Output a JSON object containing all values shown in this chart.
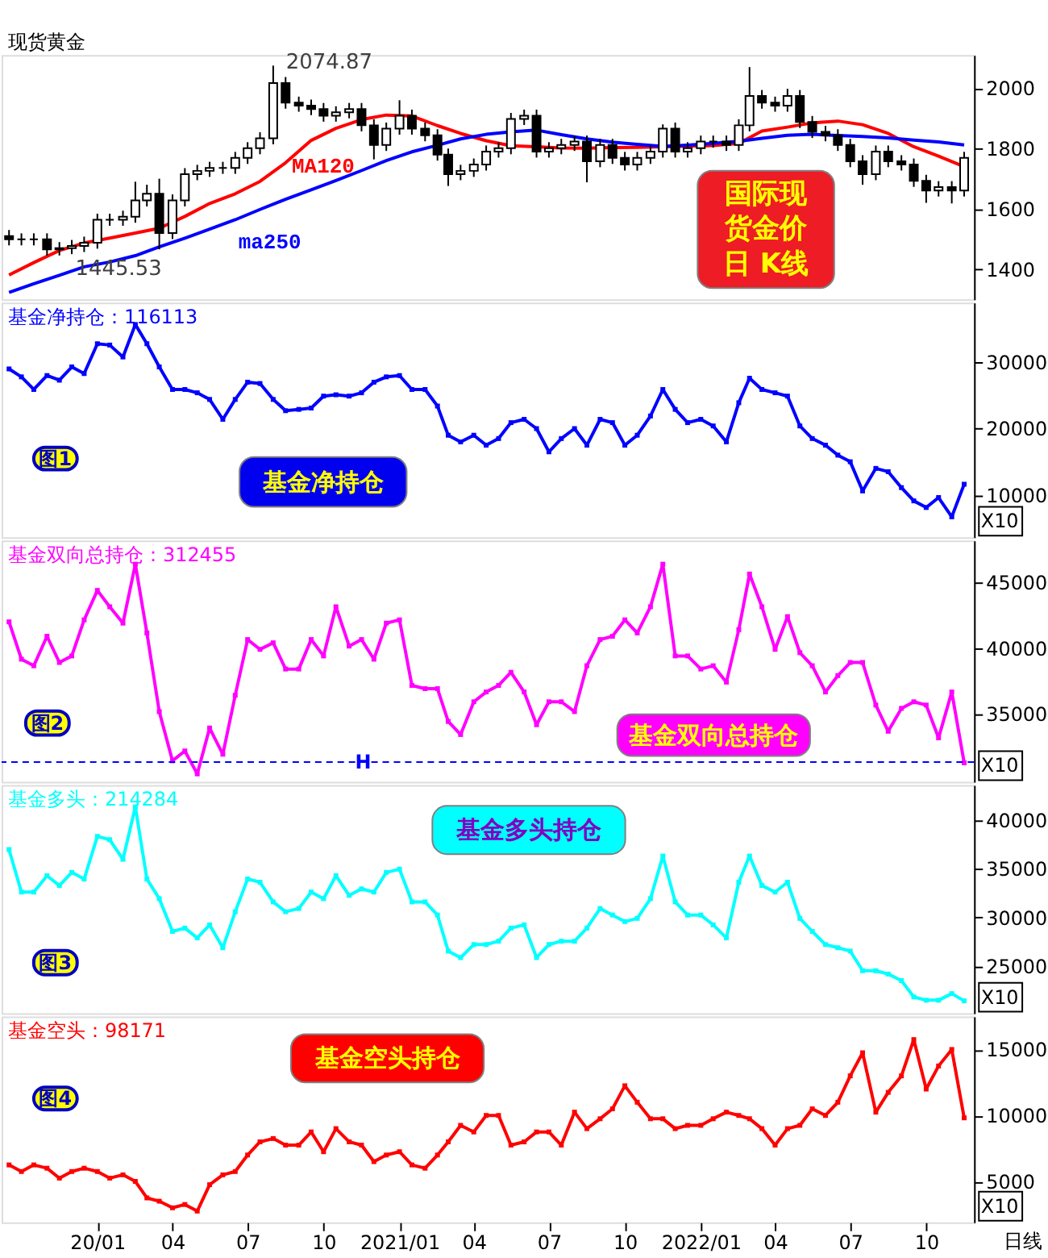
{
  "chart_data": [
    {
      "type": "candlestick",
      "title": "现货黄金",
      "xlim": [
        "2019-09-07",
        "2022-11-28"
      ],
      "ylim": [
        1300,
        2110
      ],
      "yticks": [
        1400,
        1600,
        1800,
        2000
      ],
      "tick_labels": "y",
      "xticks": [
        {
          "value": "2020-01-01",
          "label": "20/01"
        },
        {
          "value": "2020-04-01",
          "label": "04"
        },
        {
          "value": "2020-07-01",
          "label": "07"
        },
        {
          "value": "2020-10-01",
          "label": "10"
        },
        {
          "value": "2021-01-01",
          "label": "2021/01"
        },
        {
          "value": "2021-04-01",
          "label": "04"
        },
        {
          "value": "2021-07-01",
          "label": "07"
        },
        {
          "value": "2021-10-01",
          "label": "10"
        },
        {
          "value": "2022-01-01",
          "label": "2022/01"
        },
        {
          "value": "2022-04-01",
          "label": "04"
        },
        {
          "value": "2022-07-01",
          "label": "07"
        },
        {
          "value": "2022-10-01",
          "label": "10"
        }
      ],
      "series": [
        {
          "type": "candlestick",
          "color": "#000000",
          "x": [
            "2019-09-16",
            "2019-10-01",
            "2019-10-16",
            "2019-11-01",
            "2019-11-16",
            "2019-12-01",
            "2019-12-16",
            "2020-01-01",
            "2020-01-16",
            "2020-02-01",
            "2020-02-16",
            "2020-03-01",
            "2020-03-16",
            "2020-04-01",
            "2020-04-16",
            "2020-05-01",
            "2020-05-16",
            "2020-06-01",
            "2020-06-16",
            "2020-07-01",
            "2020-07-16",
            "2020-08-01",
            "2020-08-16",
            "2020-09-01",
            "2020-09-16",
            "2020-10-01",
            "2020-10-16",
            "2020-11-01",
            "2020-11-16",
            "2020-12-01",
            "2020-12-16",
            "2021-01-01",
            "2021-01-16",
            "2021-02-01",
            "2021-02-16",
            "2021-03-01",
            "2021-03-16",
            "2021-04-01",
            "2021-04-16",
            "2021-05-01",
            "2021-05-16",
            "2021-06-01",
            "2021-06-16",
            "2021-07-01",
            "2021-07-16",
            "2021-08-01",
            "2021-08-16",
            "2021-09-01",
            "2021-09-16",
            "2021-10-01",
            "2021-10-16",
            "2021-11-01",
            "2021-11-16",
            "2021-12-01",
            "2021-12-16",
            "2022-01-01",
            "2022-01-16",
            "2022-02-01",
            "2022-02-16",
            "2022-03-01",
            "2022-03-16",
            "2022-04-01",
            "2022-04-16",
            "2022-05-01",
            "2022-05-16",
            "2022-06-01",
            "2022-06-16",
            "2022-07-01",
            "2022-07-16",
            "2022-08-01",
            "2022-08-16",
            "2022-09-01",
            "2022-09-16",
            "2022-10-01",
            "2022-10-16",
            "2022-11-01",
            "2022-11-16"
          ],
          "ohlc": [
            [
              1510,
              1530,
              1479,
              1499
            ],
            [
              1499,
              1519,
              1479,
              1499
            ],
            [
              1499,
              1519,
              1479,
              1499
            ],
            [
              1499,
              1519,
              1446,
              1466
            ],
            [
              1466,
              1490,
              1445.53,
              1470
            ],
            [
              1470,
              1497,
              1450,
              1477
            ],
            [
              1477,
              1508,
              1457,
              1488
            ],
            [
              1488,
              1584,
              1468,
              1564
            ],
            [
              1564,
              1584,
              1544,
              1564
            ],
            [
              1564,
              1594,
              1544,
              1574
            ],
            [
              1574,
              1690,
              1554,
              1628
            ],
            [
              1628,
              1680,
              1608,
              1650
            ],
            [
              1650,
              1700,
              1466,
              1520
            ],
            [
              1520,
              1648,
              1500,
              1628
            ],
            [
              1628,
              1735,
              1608,
              1715
            ],
            [
              1715,
              1746,
              1695,
              1726
            ],
            [
              1726,
              1756,
              1706,
              1736
            ],
            [
              1736,
              1756,
              1716,
              1736
            ],
            [
              1736,
              1789,
              1716,
              1769
            ],
            [
              1769,
              1821,
              1749,
              1801
            ],
            [
              1801,
              1854,
              1781,
              1834
            ],
            [
              1834,
              2074.87,
              1814,
              2017
            ],
            [
              2017,
              2037,
              1932,
              1952
            ],
            [
              1952,
              1972,
              1922,
              1942
            ],
            [
              1942,
              1962,
              1911,
              1931
            ],
            [
              1931,
              1951,
              1889,
              1909
            ],
            [
              1909,
              1940,
              1889,
              1920
            ],
            [
              1920,
              1951,
              1900,
              1931
            ],
            [
              1931,
              1951,
              1857,
              1877
            ],
            [
              1877,
              1897,
              1764,
              1812
            ],
            [
              1812,
              1886,
              1792,
              1866
            ],
            [
              1866,
              1960,
              1846,
              1909
            ],
            [
              1909,
              1929,
              1846,
              1866
            ],
            [
              1866,
              1886,
              1824,
              1844
            ],
            [
              1844,
              1864,
              1760,
              1780
            ],
            [
              1780,
              1800,
              1676,
              1715
            ],
            [
              1715,
              1746,
              1695,
              1726
            ],
            [
              1726,
              1767,
              1706,
              1747
            ],
            [
              1747,
              1810,
              1727,
              1790
            ],
            [
              1790,
              1821,
              1770,
              1801
            ],
            [
              1801,
              1918,
              1781,
              1898
            ],
            [
              1898,
              1929,
              1878,
              1909
            ],
            [
              1909,
              1929,
              1770,
              1790
            ],
            [
              1790,
              1821,
              1770,
              1801
            ],
            [
              1801,
              1832,
              1781,
              1812
            ],
            [
              1812,
              1843,
              1792,
              1823
            ],
            [
              1823,
              1843,
              1688,
              1758
            ],
            [
              1758,
              1832,
              1738,
              1812
            ],
            [
              1812,
              1832,
              1749,
              1769
            ],
            [
              1769,
              1789,
              1727,
              1747
            ],
            [
              1747,
              1789,
              1727,
              1769
            ],
            [
              1769,
              1810,
              1749,
              1790
            ],
            [
              1790,
              1880,
              1770,
              1866
            ],
            [
              1866,
              1886,
              1770,
              1790
            ],
            [
              1790,
              1821,
              1770,
              1801
            ],
            [
              1801,
              1843,
              1781,
              1823
            ],
            [
              1823,
              1843,
              1803,
              1823
            ],
            [
              1823,
              1843,
              1792,
              1812
            ],
            [
              1812,
              1897,
              1792,
              1877
            ],
            [
              1877,
              2070,
              1857,
              1974
            ],
            [
              1974,
              1994,
              1932,
              1952
            ],
            [
              1952,
              1972,
              1922,
              1942
            ],
            [
              1942,
              1998,
              1922,
              1974
            ],
            [
              1974,
              1994,
              1868,
              1888
            ],
            [
              1888,
              1908,
              1835,
              1855
            ],
            [
              1855,
              1875,
              1824,
              1844
            ],
            [
              1844,
              1864,
              1792,
              1812
            ],
            [
              1812,
              1832,
              1738,
              1758
            ],
            [
              1758,
              1778,
              1680,
              1715
            ],
            [
              1715,
              1810,
              1695,
              1790
            ],
            [
              1790,
              1810,
              1738,
              1758
            ],
            [
              1758,
              1778,
              1727,
              1747
            ],
            [
              1747,
              1767,
              1673,
              1693
            ],
            [
              1693,
              1713,
              1620,
              1661
            ],
            [
              1661,
              1692,
              1641,
              1672
            ],
            [
              1672,
              1692,
              1618,
              1661
            ],
            [
              1661,
              1789,
              1641,
              1769
            ]
          ]
        },
        {
          "name": "MA120",
          "type": "line",
          "color": "#ff0000",
          "x": [
            "2019-09-16",
            "2019-10-16",
            "2019-11-16",
            "2019-12-16",
            "2020-01-16",
            "2020-02-16",
            "2020-03-16",
            "2020-04-16",
            "2020-05-16",
            "2020-06-16",
            "2020-07-16",
            "2020-08-16",
            "2020-09-16",
            "2020-10-16",
            "2020-11-16",
            "2020-12-16",
            "2021-01-16",
            "2021-02-16",
            "2021-03-16",
            "2021-04-16",
            "2021-05-16",
            "2021-06-16",
            "2021-07-16",
            "2021-08-16",
            "2021-09-16",
            "2021-10-16",
            "2021-11-16",
            "2021-12-16",
            "2022-01-16",
            "2022-02-16",
            "2022-03-16",
            "2022-04-16",
            "2022-05-16",
            "2022-06-16",
            "2022-07-16",
            "2022-08-16",
            "2022-09-16",
            "2022-10-16",
            "2022-11-16"
          ],
          "values": [
            1381,
            1422,
            1462,
            1487,
            1503,
            1520,
            1536,
            1575,
            1618,
            1650,
            1691,
            1753,
            1827,
            1867,
            1896,
            1911,
            1908,
            1876,
            1850,
            1826,
            1809,
            1806,
            1802,
            1801,
            1803,
            1804,
            1806,
            1808,
            1810,
            1817,
            1858,
            1871,
            1885,
            1891,
            1879,
            1850,
            1806,
            1775,
            1740
          ]
        },
        {
          "name": "ma250",
          "type": "line",
          "color": "#0000ff",
          "x": [
            "2019-09-16",
            "2019-10-16",
            "2019-11-16",
            "2019-12-16",
            "2020-01-16",
            "2020-02-16",
            "2020-03-16",
            "2020-04-16",
            "2020-05-16",
            "2020-06-16",
            "2020-07-16",
            "2020-08-16",
            "2020-09-16",
            "2020-10-16",
            "2020-11-16",
            "2020-12-16",
            "2021-01-16",
            "2021-02-16",
            "2021-03-16",
            "2021-04-16",
            "2021-05-16",
            "2021-06-16",
            "2021-07-16",
            "2021-08-16",
            "2021-09-16",
            "2021-10-16",
            "2021-11-16",
            "2021-12-16",
            "2022-01-16",
            "2022-02-16",
            "2022-03-16",
            "2022-04-16",
            "2022-05-16",
            "2022-06-16",
            "2022-07-16",
            "2022-08-16",
            "2022-09-16",
            "2022-10-16",
            "2022-11-16"
          ],
          "values": [
            1323,
            1352,
            1380,
            1408,
            1424,
            1445,
            1474,
            1503,
            1533,
            1564,
            1598,
            1632,
            1663,
            1694,
            1727,
            1760,
            1789,
            1811,
            1832,
            1847,
            1855,
            1861,
            1846,
            1832,
            1821,
            1814,
            1807,
            1811,
            1817,
            1824,
            1834,
            1844,
            1847,
            1843,
            1840,
            1835,
            1828,
            1822,
            1812
          ]
        }
      ],
      "annotations": [
        {
          "text": "2074.87",
          "x": "2020-08-01",
          "y": 2074.87
        },
        {
          "text": "1445.53",
          "x": "2019-11-16",
          "y": 1445.53
        },
        "国际现货金价日 K线"
      ]
    },
    {
      "type": "line",
      "title": "基金净持仓：116113",
      "xlim": [
        "2019-09-07",
        "2022-11-28"
      ],
      "ylim": [
        3600,
        39000
      ],
      "yticks": [
        10000,
        20000,
        30000
      ],
      "tick_labels": "y",
      "marker": "square",
      "xticks": [
        {
          "value": "2020-01-01",
          "label": "20/01"
        },
        {
          "value": "2020-04-01",
          "label": "04"
        },
        {
          "value": "2020-07-01",
          "label": "07"
        },
        {
          "value": "2020-10-01",
          "label": "10"
        },
        {
          "value": "2021-01-01",
          "label": "2021/01"
        },
        {
          "value": "2021-04-01",
          "label": "04"
        },
        {
          "value": "2021-07-01",
          "label": "07"
        },
        {
          "value": "2021-10-01",
          "label": "10"
        },
        {
          "value": "2022-01-01",
          "label": "2022/01"
        },
        {
          "value": "2022-04-01",
          "label": "04"
        },
        {
          "value": "2022-07-01",
          "label": "07"
        },
        {
          "value": "2022-10-01",
          "label": "10"
        }
      ],
      "x": [
        "2019-09-16",
        "2019-10-01",
        "2019-10-16",
        "2019-11-01",
        "2019-11-16",
        "2019-12-01",
        "2019-12-16",
        "2020-01-01",
        "2020-01-16",
        "2020-02-01",
        "2020-02-16",
        "2020-03-01",
        "2020-03-16",
        "2020-04-01",
        "2020-04-16",
        "2020-05-01",
        "2020-05-16",
        "2020-06-01",
        "2020-06-16",
        "2020-07-01",
        "2020-07-16",
        "2020-08-01",
        "2020-08-16",
        "2020-09-01",
        "2020-09-16",
        "2020-10-01",
        "2020-10-16",
        "2020-11-01",
        "2020-11-16",
        "2020-12-01",
        "2020-12-16",
        "2021-01-01",
        "2021-01-16",
        "2021-02-01",
        "2021-02-16",
        "2021-03-01",
        "2021-03-16",
        "2021-04-01",
        "2021-04-16",
        "2021-05-01",
        "2021-05-16",
        "2021-06-01",
        "2021-06-16",
        "2021-07-01",
        "2021-07-16",
        "2021-08-01",
        "2021-08-16",
        "2021-09-01",
        "2021-09-16",
        "2021-10-01",
        "2021-10-16",
        "2021-11-01",
        "2021-11-16",
        "2021-12-01",
        "2021-12-16",
        "2022-01-01",
        "2022-01-16",
        "2022-02-01",
        "2022-02-16",
        "2022-03-01",
        "2022-03-16",
        "2022-04-01",
        "2022-04-16",
        "2022-05-01",
        "2022-05-16",
        "2022-06-01",
        "2022-06-16",
        "2022-07-01",
        "2022-07-16",
        "2022-08-01",
        "2022-08-16",
        "2022-09-01",
        "2022-09-16",
        "2022-10-01",
        "2022-10-16",
        "2022-11-01",
        "2022-11-16"
      ],
      "series": [
        {
          "color": "#0000ff",
          "values": [
            29000,
            27800,
            25900,
            28000,
            27300,
            29300,
            28300,
            32800,
            32600,
            30800,
            35700,
            32800,
            29300,
            25900,
            25900,
            25400,
            24400,
            21400,
            24400,
            27000,
            26800,
            24400,
            22700,
            22900,
            23100,
            24900,
            25100,
            24900,
            25400,
            27000,
            27800,
            28000,
            25900,
            25900,
            23400,
            19000,
            18000,
            19000,
            17500,
            18500,
            20900,
            21400,
            20000,
            16500,
            18500,
            20000,
            17500,
            21400,
            20900,
            17500,
            19000,
            21900,
            25900,
            22900,
            20900,
            21400,
            20400,
            18000,
            23900,
            27600,
            25900,
            25400,
            24900,
            20400,
            18500,
            17500,
            16000,
            15000,
            10600,
            14000,
            13500,
            11100,
            9100,
            8100,
            9600,
            6700,
            11611
          ]
        }
      ],
      "annotations": [
        "图1",
        "基金净持仓",
        "X10"
      ]
    },
    {
      "type": "line",
      "title": "基金双向总持仓：312455",
      "xlim": [
        "2019-09-07",
        "2022-11-28"
      ],
      "ylim": [
        29800,
        48200
      ],
      "yticks": [
        35000,
        40000,
        45000
      ],
      "tick_labels": "y",
      "marker": "square",
      "xticks": [
        {
          "value": "2020-01-01",
          "label": "20/01"
        },
        {
          "value": "2020-04-01",
          "label": "04"
        },
        {
          "value": "2020-07-01",
          "label": "07"
        },
        {
          "value": "2020-10-01",
          "label": "10"
        },
        {
          "value": "2021-01-01",
          "label": "2021/01"
        },
        {
          "value": "2021-04-01",
          "label": "04"
        },
        {
          "value": "2021-07-01",
          "label": "07"
        },
        {
          "value": "2021-10-01",
          "label": "10"
        },
        {
          "value": "2022-01-01",
          "label": "2022/01"
        },
        {
          "value": "2022-04-01",
          "label": "04"
        },
        {
          "value": "2022-07-01",
          "label": "07"
        },
        {
          "value": "2022-10-01",
          "label": "10"
        }
      ],
      "x": [
        "2019-09-16",
        "2019-10-01",
        "2019-10-16",
        "2019-11-01",
        "2019-11-16",
        "2019-12-01",
        "2019-12-16",
        "2020-01-01",
        "2020-01-16",
        "2020-02-01",
        "2020-02-16",
        "2020-03-01",
        "2020-03-16",
        "2020-04-01",
        "2020-04-16",
        "2020-05-01",
        "2020-05-16",
        "2020-06-01",
        "2020-06-16",
        "2020-07-01",
        "2020-07-16",
        "2020-08-01",
        "2020-08-16",
        "2020-09-01",
        "2020-09-16",
        "2020-10-01",
        "2020-10-16",
        "2020-11-01",
        "2020-11-16",
        "2020-12-01",
        "2020-12-16",
        "2021-01-01",
        "2021-01-16",
        "2021-02-01",
        "2021-02-16",
        "2021-03-01",
        "2021-03-16",
        "2021-04-01",
        "2021-04-16",
        "2021-05-01",
        "2021-05-16",
        "2021-06-01",
        "2021-06-16",
        "2021-07-01",
        "2021-07-16",
        "2021-08-01",
        "2021-08-16",
        "2021-09-01",
        "2021-09-16",
        "2021-10-01",
        "2021-10-16",
        "2021-11-01",
        "2021-11-16",
        "2021-12-01",
        "2021-12-16",
        "2022-01-01",
        "2022-01-16",
        "2022-02-01",
        "2022-02-16",
        "2022-03-01",
        "2022-03-16",
        "2022-04-01",
        "2022-04-16",
        "2022-05-01",
        "2022-05-16",
        "2022-06-01",
        "2022-06-16",
        "2022-07-01",
        "2022-07-16",
        "2022-08-01",
        "2022-08-16",
        "2022-09-01",
        "2022-09-16",
        "2022-10-01",
        "2022-10-16",
        "2022-11-01",
        "2022-11-16"
      ],
      "series": [
        {
          "color": "#ff00ff",
          "values": [
            42000,
            39150,
            38650,
            40900,
            38900,
            39400,
            42150,
            44400,
            43150,
            41900,
            46400,
            41150,
            35150,
            31400,
            32150,
            30400,
            33900,
            31900,
            36400,
            40650,
            39900,
            40400,
            38400,
            38400,
            40650,
            39400,
            43150,
            40150,
            40650,
            39150,
            41900,
            42150,
            37150,
            36900,
            36900,
            34400,
            33400,
            35900,
            36650,
            37150,
            38150,
            36650,
            34150,
            35900,
            35900,
            35150,
            38650,
            40650,
            40900,
            42150,
            41150,
            43150,
            46400,
            39400,
            39400,
            38400,
            38650,
            37400,
            41400,
            45650,
            43150,
            39900,
            42400,
            39650,
            38650,
            36650,
            37900,
            38900,
            38900,
            35650,
            33650,
            35400,
            35900,
            35650,
            33150,
            36650,
            31245.5
          ]
        }
      ],
      "ref_lines": [
        {
          "axis": "y",
          "value": 31300,
          "label": "H",
          "color": "#0000ff",
          "line_style": "dashed"
        }
      ],
      "annotations": [
        "图2",
        "基金双向总持仓",
        "X10"
      ]
    },
    {
      "type": "line",
      "title": "基金多头：214284",
      "xlim": [
        "2019-09-07",
        "2022-11-28"
      ],
      "ylim": [
        20150,
        43600
      ],
      "yticks": [
        25000,
        30000,
        35000,
        40000
      ],
      "tick_labels": "y",
      "marker": "square",
      "xticks": [
        {
          "value": "2020-01-01",
          "label": "20/01"
        },
        {
          "value": "2020-04-01",
          "label": "04"
        },
        {
          "value": "2020-07-01",
          "label": "07"
        },
        {
          "value": "2020-10-01",
          "label": "10"
        },
        {
          "value": "2021-01-01",
          "label": "2021/01"
        },
        {
          "value": "2021-04-01",
          "label": "04"
        },
        {
          "value": "2021-07-01",
          "label": "07"
        },
        {
          "value": "2021-10-01",
          "label": "10"
        },
        {
          "value": "2022-01-01",
          "label": "2022/01"
        },
        {
          "value": "2022-04-01",
          "label": "04"
        },
        {
          "value": "2022-07-01",
          "label": "07"
        },
        {
          "value": "2022-10-01",
          "label": "10"
        }
      ],
      "x": [
        "2019-09-16",
        "2019-10-01",
        "2019-10-16",
        "2019-11-01",
        "2019-11-16",
        "2019-12-01",
        "2019-12-16",
        "2020-01-01",
        "2020-01-16",
        "2020-02-01",
        "2020-02-16",
        "2020-03-01",
        "2020-03-16",
        "2020-04-01",
        "2020-04-16",
        "2020-05-01",
        "2020-05-16",
        "2020-06-01",
        "2020-06-16",
        "2020-07-01",
        "2020-07-16",
        "2020-08-01",
        "2020-08-16",
        "2020-09-01",
        "2020-09-16",
        "2020-10-01",
        "2020-10-16",
        "2020-11-01",
        "2020-11-16",
        "2020-12-01",
        "2020-12-16",
        "2021-01-01",
        "2021-01-16",
        "2021-02-01",
        "2021-02-16",
        "2021-03-01",
        "2021-03-16",
        "2021-04-01",
        "2021-04-16",
        "2021-05-01",
        "2021-05-16",
        "2021-06-01",
        "2021-06-16",
        "2021-07-01",
        "2021-07-16",
        "2021-08-01",
        "2021-08-16",
        "2021-09-01",
        "2021-09-16",
        "2021-10-01",
        "2021-10-16",
        "2021-11-01",
        "2021-11-16",
        "2021-12-01",
        "2021-12-16",
        "2022-01-01",
        "2022-01-16",
        "2022-02-01",
        "2022-02-16",
        "2022-03-01",
        "2022-03-16",
        "2022-04-01",
        "2022-04-16",
        "2022-05-01",
        "2022-05-16",
        "2022-06-01",
        "2022-06-16",
        "2022-07-01",
        "2022-07-16",
        "2022-08-01",
        "2022-08-16",
        "2022-09-01",
        "2022-09-16",
        "2022-10-01",
        "2022-10-16",
        "2022-11-01",
        "2022-11-16"
      ],
      "series": [
        {
          "color": "#00ffff",
          "values": [
            36970,
            32600,
            32600,
            34280,
            33270,
            34620,
            33940,
            38320,
            37980,
            35960,
            41350,
            33940,
            31920,
            28560,
            28900,
            27890,
            29230,
            26880,
            30580,
            33940,
            33610,
            31590,
            30580,
            30910,
            32600,
            31920,
            34280,
            32260,
            32930,
            32600,
            34620,
            34950,
            31590,
            31590,
            30240,
            26540,
            25870,
            27210,
            27210,
            27550,
            28900,
            29230,
            25870,
            27210,
            27550,
            27550,
            28900,
            30910,
            30240,
            29570,
            29900,
            31920,
            36300,
            31590,
            30240,
            30240,
            29230,
            27890,
            33610,
            36300,
            33270,
            32600,
            33610,
            29900,
            28560,
            27210,
            26880,
            26540,
            24520,
            24520,
            24180,
            23510,
            21830,
            21490,
            21490,
            22170,
            21428.4
          ]
        }
      ],
      "annotations": [
        "图3",
        "基金多头持仓",
        "X10"
      ]
    },
    {
      "type": "line",
      "title": "基金空头：98171",
      "xlabel": "日线",
      "xlim": [
        "2019-09-07",
        "2022-11-28"
      ],
      "ylim": [
        1900,
        17500
      ],
      "yticks": [
        5000,
        10000,
        15000
      ],
      "marker": "square",
      "xticks": [
        {
          "value": "2020-01-01",
          "label": "20/01"
        },
        {
          "value": "2020-04-01",
          "label": "04"
        },
        {
          "value": "2020-07-01",
          "label": "07"
        },
        {
          "value": "2020-10-01",
          "label": "10"
        },
        {
          "value": "2021-01-01",
          "label": "2021/01"
        },
        {
          "value": "2021-04-01",
          "label": "04"
        },
        {
          "value": "2021-07-01",
          "label": "07"
        },
        {
          "value": "2021-10-01",
          "label": "10"
        },
        {
          "value": "2022-01-01",
          "label": "2022/01"
        },
        {
          "value": "2022-04-01",
          "label": "04"
        },
        {
          "value": "2022-07-01",
          "label": "07"
        },
        {
          "value": "2022-10-01",
          "label": "10"
        }
      ],
      "x": [
        "2019-09-16",
        "2019-10-01",
        "2019-10-16",
        "2019-11-01",
        "2019-11-16",
        "2019-12-01",
        "2019-12-16",
        "2020-01-01",
        "2020-01-16",
        "2020-02-01",
        "2020-02-16",
        "2020-03-01",
        "2020-03-16",
        "2020-04-01",
        "2020-04-16",
        "2020-05-01",
        "2020-05-16",
        "2020-06-01",
        "2020-06-16",
        "2020-07-01",
        "2020-07-16",
        "2020-08-01",
        "2020-08-16",
        "2020-09-01",
        "2020-09-16",
        "2020-10-01",
        "2020-10-16",
        "2020-11-01",
        "2020-11-16",
        "2020-12-01",
        "2020-12-16",
        "2021-01-01",
        "2021-01-16",
        "2021-02-01",
        "2021-02-16",
        "2021-03-01",
        "2021-03-16",
        "2021-04-01",
        "2021-04-16",
        "2021-05-01",
        "2021-05-16",
        "2021-06-01",
        "2021-06-16",
        "2021-07-01",
        "2021-07-16",
        "2021-08-01",
        "2021-08-16",
        "2021-09-01",
        "2021-09-16",
        "2021-10-01",
        "2021-10-16",
        "2021-11-01",
        "2021-11-16",
        "2021-12-01",
        "2021-12-16",
        "2022-01-01",
        "2022-01-16",
        "2022-02-01",
        "2022-02-16",
        "2022-03-01",
        "2022-03-16",
        "2022-04-01",
        "2022-04-16",
        "2022-05-01",
        "2022-05-16",
        "2022-06-01",
        "2022-06-16",
        "2022-07-01",
        "2022-07-16",
        "2022-08-01",
        "2022-08-16",
        "2022-09-01",
        "2022-09-16",
        "2022-10-01",
        "2022-10-16",
        "2022-11-01",
        "2022-11-16"
      ],
      "series": [
        {
          "color": "#ff0000",
          "values": [
            6250,
            5750,
            6250,
            6000,
            5250,
            5750,
            6000,
            5750,
            5250,
            5500,
            5000,
            3750,
            3500,
            3000,
            3250,
            2750,
            4750,
            5500,
            5750,
            7000,
            8000,
            8250,
            7750,
            7750,
            8750,
            7250,
            9000,
            8000,
            7750,
            6500,
            7000,
            7250,
            6250,
            6000,
            7000,
            8000,
            9250,
            8750,
            10000,
            10000,
            7750,
            8000,
            8750,
            8750,
            7750,
            10250,
            9000,
            9750,
            10500,
            12250,
            11000,
            9750,
            9750,
            9000,
            9250,
            9250,
            9750,
            10250,
            10000,
            9750,
            9000,
            7750,
            9000,
            9250,
            10500,
            10000,
            11000,
            13000,
            14750,
            10250,
            11750,
            13000,
            15750,
            12000,
            13750,
            15000,
            9817.1
          ]
        }
      ],
      "annotations": [
        "图4",
        "基金空头持仓",
        "X10"
      ]
    }
  ]
}
